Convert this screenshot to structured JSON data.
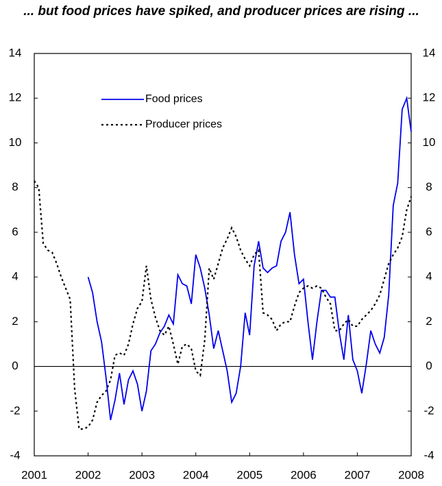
{
  "chart_data": {
    "type": "line",
    "title": "... but food prices have spiked, and producer prices are rising ...",
    "x": [
      2001,
      2001.083,
      2001.167,
      2001.25,
      2001.333,
      2001.417,
      2001.5,
      2001.583,
      2001.667,
      2001.75,
      2001.833,
      2001.917,
      2002,
      2002.083,
      2002.167,
      2002.25,
      2002.333,
      2002.417,
      2002.5,
      2002.583,
      2002.667,
      2002.75,
      2002.833,
      2002.917,
      2003,
      2003.083,
      2003.167,
      2003.25,
      2003.333,
      2003.417,
      2003.5,
      2003.583,
      2003.667,
      2003.75,
      2003.833,
      2003.917,
      2004,
      2004.083,
      2004.167,
      2004.25,
      2004.333,
      2004.417,
      2004.5,
      2004.583,
      2004.667,
      2004.75,
      2004.833,
      2004.917,
      2005,
      2005.083,
      2005.167,
      2005.25,
      2005.333,
      2005.417,
      2005.5,
      2005.583,
      2005.667,
      2005.75,
      2005.833,
      2005.917,
      2006,
      2006.083,
      2006.167,
      2006.25,
      2006.333,
      2006.417,
      2006.5,
      2006.583,
      2006.667,
      2006.75,
      2006.833,
      2006.917,
      2007,
      2007.083,
      2007.167,
      2007.25,
      2007.333,
      2007.417,
      2007.5,
      2007.583,
      2007.667,
      2007.75,
      2007.833,
      2007.917,
      2008
    ],
    "series": [
      {
        "name": "Food prices",
        "color": "#0000ee",
        "dash": "solid",
        "values": [
          null,
          null,
          null,
          null,
          null,
          null,
          null,
          null,
          null,
          null,
          null,
          null,
          4.0,
          3.3,
          2.0,
          1.1,
          -0.5,
          -2.4,
          -1.5,
          -0.3,
          -1.7,
          -0.6,
          -0.2,
          -0.8,
          -2.0,
          -1.1,
          0.7,
          1.0,
          1.5,
          1.8,
          2.3,
          1.9,
          4.1,
          3.7,
          3.6,
          2.8,
          5.0,
          4.4,
          3.5,
          2.3,
          0.8,
          1.6,
          0.7,
          -0.2,
          -1.6,
          -1.2,
          0.0,
          2.4,
          1.4,
          4.5,
          5.6,
          4.4,
          4.2,
          4.4,
          4.5,
          5.6,
          6.0,
          6.9,
          5.0,
          3.7,
          3.9,
          2.0,
          0.3,
          2.0,
          3.4,
          3.4,
          3.1,
          3.1,
          1.5,
          0.3,
          2.3,
          0.3,
          -0.2,
          -1.2,
          0.1,
          1.6,
          1.0,
          0.6,
          1.3,
          3.2,
          7.2,
          8.2,
          11.5,
          12.0,
          10.5
        ]
      },
      {
        "name": "Producer prices",
        "color": "#000000",
        "dash": "dotted",
        "values": [
          8.3,
          8.0,
          5.5,
          5.2,
          5.1,
          4.6,
          4.0,
          3.5,
          3.0,
          -1.0,
          -2.8,
          -2.8,
          -2.7,
          -2.4,
          -1.6,
          -1.3,
          -1.1,
          -0.6,
          0.5,
          0.6,
          0.5,
          1.0,
          1.9,
          2.6,
          2.9,
          4.5,
          3.0,
          2.2,
          1.6,
          1.4,
          1.8,
          1.0,
          0.1,
          0.9,
          1.0,
          0.8,
          -0.2,
          -0.4,
          1.2,
          4.4,
          3.9,
          4.6,
          5.3,
          5.7,
          6.2,
          5.8,
          5.2,
          4.8,
          4.5,
          5.0,
          5.2,
          2.4,
          2.3,
          2.1,
          1.6,
          1.9,
          2.0,
          2.0,
          2.7,
          3.3,
          3.5,
          3.6,
          3.5,
          3.6,
          3.5,
          3.1,
          2.8,
          1.6,
          1.6,
          1.9,
          2.1,
          1.8,
          1.8,
          2.1,
          2.3,
          2.5,
          2.8,
          3.2,
          3.9,
          4.6,
          5.0,
          5.3,
          5.8,
          7.0,
          7.6
        ]
      }
    ],
    "xlim": [
      2001,
      2008
    ],
    "xticks": [
      2001,
      2002,
      2003,
      2004,
      2005,
      2006,
      2007,
      2008
    ],
    "ylim": [
      -4,
      14
    ],
    "yticks": [
      -4,
      -2,
      0,
      2,
      4,
      6,
      8,
      10,
      12,
      14
    ],
    "y2lim": [
      -4,
      14
    ],
    "y2ticks": [
      -4,
      -2,
      0,
      2,
      4,
      6,
      8,
      10,
      12,
      14
    ],
    "legend": "upper left",
    "grid": false
  }
}
